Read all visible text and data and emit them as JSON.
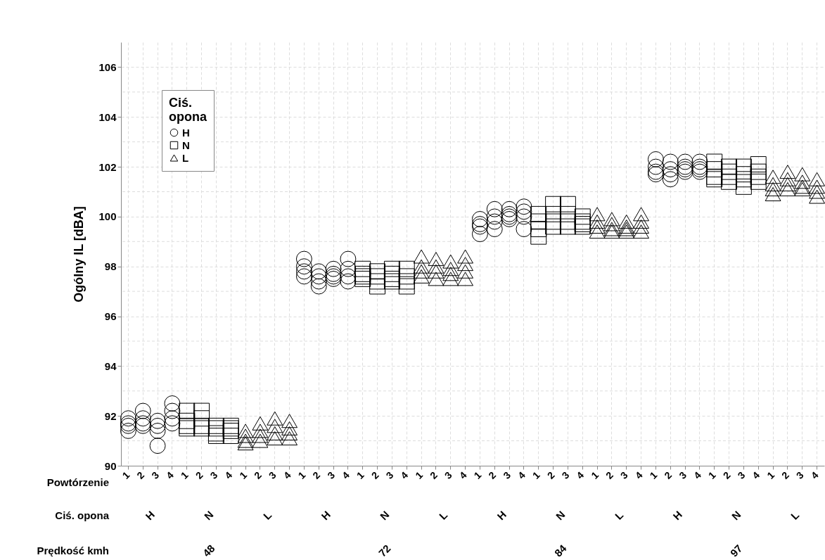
{
  "chart_data": {
    "type": "scatter",
    "ylabel": "Ogólny IL [dBA]",
    "legend_title": "Ciś. opona",
    "legend": "top left",
    "grid": true,
    "ylim": [
      90,
      107
    ],
    "yticks": [
      90,
      {
        "value": 91,
        "label": null
      },
      92,
      {
        "value": 93,
        "label": null
      },
      94,
      {
        "value": 95,
        "label": null
      },
      96,
      {
        "value": 97,
        "label": null
      },
      98,
      {
        "value": 99,
        "label": null
      },
      100,
      {
        "value": 101,
        "label": null
      },
      102,
      {
        "value": 103,
        "label": null
      },
      104,
      {
        "value": 105,
        "label": null
      },
      106
    ],
    "categories": [
      "1",
      "2",
      "3",
      "4",
      "1",
      "2",
      "3",
      "4",
      "1",
      "2",
      "3",
      "4",
      "1",
      "2",
      "3",
      "4",
      "1",
      "2",
      "3",
      "4",
      "1",
      "2",
      "3",
      "4",
      "1",
      "2",
      "3",
      "4",
      "1",
      "2",
      "3",
      "4",
      "1",
      "2",
      "3",
      "4",
      "1",
      "2",
      "3",
      "4",
      "1",
      "2",
      "3",
      "4",
      "1",
      "2",
      "3",
      "4"
    ],
    "annotations": [
      "Powtórzenie",
      "Ciś. opona",
      "H",
      "N",
      "L",
      "H",
      "N",
      "L",
      "H",
      "N",
      "L",
      "H",
      "N",
      "L",
      "Prędkość kmh",
      "48",
      "72",
      "84",
      "97"
    ],
    "series": [
      {
        "name": "H",
        "color": "#000000",
        "marker": "circle",
        "values": [
          91.9,
          92.2,
          91.8,
          92.5,
          null,
          null,
          null,
          null,
          null,
          null,
          null,
          null,
          98.3,
          97.8,
          97.9,
          98.3,
          null,
          null,
          null,
          null,
          null,
          null,
          null,
          null,
          99.9,
          100.3,
          100.3,
          100.4,
          null,
          null,
          null,
          null,
          null,
          null,
          null,
          null,
          102.3,
          102.2,
          102.2,
          102.2,
          null,
          null,
          null,
          null,
          null,
          null,
          null,
          null
        ]
      },
      {
        "color": "#000000",
        "marker": "circle",
        "values": [
          91.7,
          91.9,
          91.6,
          92.2,
          null,
          null,
          null,
          null,
          null,
          null,
          null,
          null,
          98.0,
          97.6,
          97.7,
          97.9,
          null,
          null,
          null,
          null,
          null,
          null,
          null,
          null,
          99.7,
          100.0,
          100.1,
          100.2,
          null,
          null,
          null,
          null,
          null,
          null,
          null,
          null,
          102.0,
          101.9,
          102.0,
          102.0,
          null,
          null,
          null,
          null,
          null,
          null,
          null,
          null
        ]
      },
      {
        "color": "#000000",
        "marker": "circle",
        "values": [
          91.6,
          91.7,
          91.4,
          91.9,
          null,
          null,
          null,
          null,
          null,
          null,
          null,
          null,
          97.8,
          97.4,
          97.6,
          97.6,
          null,
          null,
          null,
          null,
          null,
          null,
          null,
          null,
          99.6,
          99.8,
          100.0,
          100.0,
          null,
          null,
          null,
          null,
          null,
          null,
          null,
          null,
          101.8,
          101.7,
          101.9,
          101.9,
          null,
          null,
          null,
          null,
          null,
          null,
          null,
          null
        ]
      },
      {
        "color": "#000000",
        "marker": "circle",
        "values": [
          91.4,
          91.6,
          90.8,
          91.7,
          null,
          null,
          null,
          null,
          null,
          null,
          null,
          null,
          97.6,
          97.2,
          97.5,
          97.4,
          null,
          null,
          null,
          null,
          null,
          null,
          null,
          null,
          99.3,
          99.5,
          99.9,
          99.5,
          null,
          null,
          null,
          null,
          null,
          null,
          null,
          null,
          101.7,
          101.5,
          101.8,
          101.8,
          null,
          null,
          null,
          null,
          null,
          null,
          null,
          null
        ]
      },
      {
        "name": "N",
        "color": "#000000",
        "marker": "square",
        "values": [
          null,
          null,
          null,
          null,
          92.2,
          92.2,
          91.6,
          91.6,
          null,
          null,
          null,
          null,
          null,
          null,
          null,
          null,
          97.9,
          97.8,
          97.9,
          97.9,
          null,
          null,
          null,
          null,
          null,
          null,
          null,
          null,
          100.1,
          100.5,
          100.5,
          100.0,
          null,
          null,
          null,
          null,
          null,
          null,
          null,
          null,
          102.2,
          102.0,
          102.0,
          102.1,
          null,
          null,
          null,
          null
        ]
      },
      {
        "color": "#000000",
        "marker": "square",
        "values": [
          null,
          null,
          null,
          null,
          91.8,
          91.9,
          91.5,
          91.5,
          null,
          null,
          null,
          null,
          null,
          null,
          null,
          null,
          97.7,
          97.6,
          97.7,
          97.6,
          null,
          null,
          null,
          null,
          null,
          null,
          null,
          null,
          99.8,
          100.1,
          100.1,
          99.8,
          null,
          null,
          null,
          null,
          null,
          null,
          null,
          null,
          101.9,
          101.8,
          101.7,
          101.8,
          null,
          null,
          null,
          null
        ]
      },
      {
        "color": "#000000",
        "marker": "square",
        "values": [
          null,
          null,
          null,
          null,
          91.6,
          91.6,
          91.3,
          91.4,
          null,
          null,
          null,
          null,
          null,
          null,
          null,
          null,
          97.6,
          97.4,
          97.5,
          97.4,
          null,
          null,
          null,
          null,
          null,
          null,
          null,
          null,
          99.5,
          99.8,
          99.8,
          99.7,
          null,
          null,
          null,
          null,
          null,
          null,
          null,
          null,
          101.6,
          101.6,
          101.5,
          101.6,
          null,
          null,
          null,
          null
        ]
      },
      {
        "color": "#000000",
        "marker": "square",
        "values": [
          null,
          null,
          null,
          null,
          91.5,
          91.5,
          91.2,
          91.2,
          null,
          null,
          null,
          null,
          null,
          null,
          null,
          null,
          97.5,
          97.2,
          97.4,
          97.2,
          null,
          null,
          null,
          null,
          null,
          null,
          null,
          null,
          99.2,
          99.6,
          99.6,
          99.6,
          null,
          null,
          null,
          null,
          null,
          null,
          null,
          null,
          101.5,
          101.4,
          101.2,
          101.4,
          null,
          null,
          null,
          null
        ]
      },
      {
        "name": "L",
        "color": "#000000",
        "marker": "triangle",
        "values": [
          null,
          null,
          null,
          null,
          null,
          null,
          null,
          null,
          91.4,
          91.7,
          91.9,
          91.8,
          null,
          null,
          null,
          null,
          null,
          null,
          null,
          null,
          98.4,
          98.3,
          98.2,
          98.4,
          null,
          null,
          null,
          null,
          null,
          null,
          null,
          null,
          100.1,
          99.9,
          99.8,
          100.1,
          null,
          null,
          null,
          null,
          null,
          null,
          null,
          null,
          101.6,
          101.8,
          101.7,
          101.5
        ]
      },
      {
        "color": "#000000",
        "marker": "triangle",
        "values": [
          null,
          null,
          null,
          null,
          null,
          null,
          null,
          null,
          91.2,
          91.4,
          91.6,
          91.5,
          null,
          null,
          null,
          null,
          null,
          null,
          null,
          null,
          98.0,
          98.0,
          97.9,
          98.1,
          null,
          null,
          null,
          null,
          null,
          null,
          null,
          null,
          99.8,
          99.7,
          99.6,
          99.8,
          null,
          null,
          null,
          null,
          null,
          null,
          null,
          null,
          101.3,
          101.5,
          101.4,
          101.2
        ]
      },
      {
        "color": "#000000",
        "marker": "triangle",
        "values": [
          null,
          null,
          null,
          null,
          null,
          null,
          null,
          null,
          91.0,
          91.2,
          91.3,
          91.3,
          null,
          null,
          null,
          null,
          null,
          null,
          null,
          null,
          97.8,
          97.8,
          97.7,
          97.8,
          null,
          null,
          null,
          null,
          null,
          null,
          null,
          null,
          99.6,
          99.5,
          99.5,
          99.6,
          null,
          null,
          null,
          null,
          null,
          null,
          null,
          null,
          101.1,
          101.3,
          101.2,
          101.0
        ]
      },
      {
        "color": "#000000",
        "marker": "triangle",
        "values": [
          null,
          null,
          null,
          null,
          null,
          null,
          null,
          null,
          90.9,
          91.0,
          91.1,
          91.1,
          null,
          null,
          null,
          null,
          null,
          null,
          null,
          null,
          97.6,
          97.5,
          97.5,
          97.5,
          null,
          null,
          null,
          null,
          null,
          null,
          null,
          null,
          99.4,
          99.4,
          99.4,
          99.4,
          null,
          null,
          null,
          null,
          null,
          null,
          null,
          null,
          100.9,
          101.1,
          101.1,
          100.8
        ]
      }
    ]
  }
}
